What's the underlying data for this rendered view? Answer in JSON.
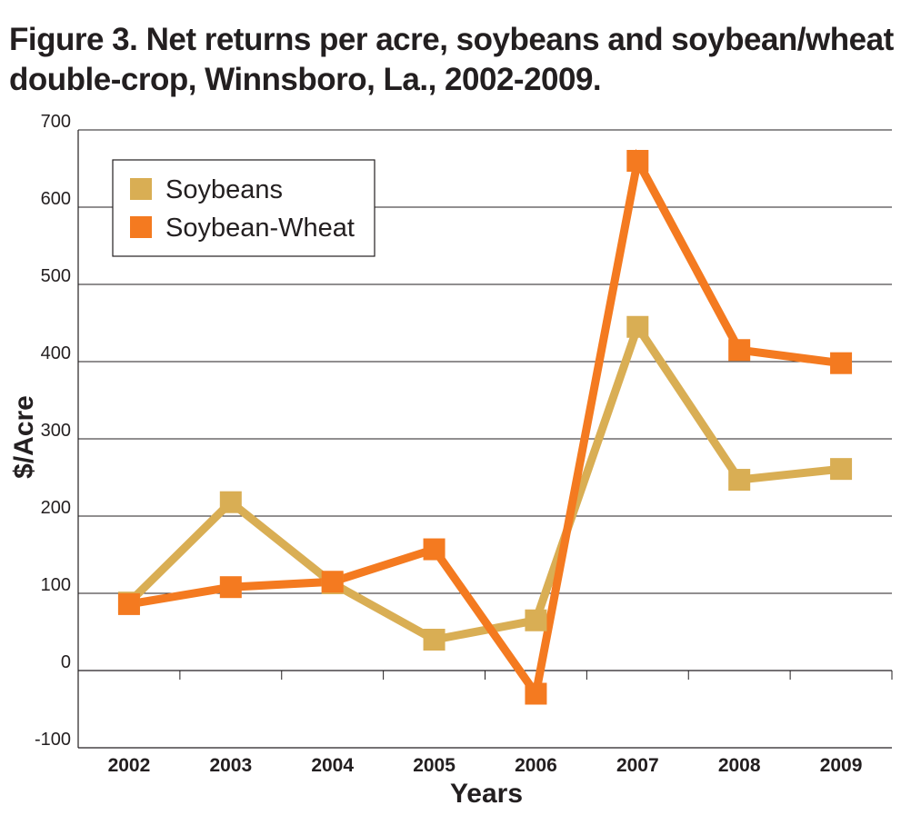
{
  "chart_data": {
    "type": "line",
    "title": "Figure 3. Net returns per acre, soybeans and soybean/wheat double-crop,  Winnsboro, La., 2002-2009.",
    "xlabel": "Years",
    "ylabel": "$/Acre",
    "categories": [
      "2002",
      "2003",
      "2004",
      "2005",
      "2006",
      "2007",
      "2008",
      "2009"
    ],
    "yticks": [
      700,
      600,
      500,
      400,
      300,
      200,
      100,
      0,
      -100
    ],
    "ylim": [
      -100,
      700
    ],
    "grid": true,
    "legend_position": "top-left",
    "series": [
      {
        "name": "Soybeans",
        "color": "#d9ae54",
        "marker": "square",
        "values": [
          88,
          218,
          113,
          40,
          65,
          445,
          247,
          261
        ]
      },
      {
        "name": "Soybean-Wheat",
        "color": "#f47a20",
        "marker": "square",
        "values": [
          86,
          108,
          115,
          157,
          -30,
          660,
          415,
          398
        ]
      }
    ]
  }
}
